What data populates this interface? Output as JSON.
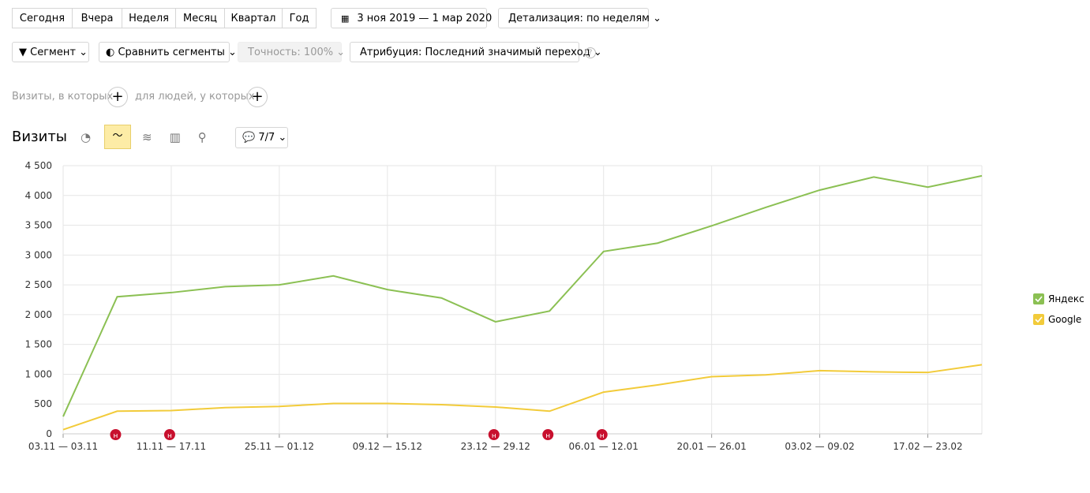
{
  "toolbar": {
    "periods": [
      "Сегодня",
      "Вчера",
      "Неделя",
      "Месяц",
      "Квартал",
      "Год"
    ],
    "date_range": "3 ноя 2019 — 1 мар 2020",
    "detail": "Детализация: по неделям",
    "segment": "Сегмент",
    "compare": "Сравнить сегменты",
    "accuracy": "Точность: 100%",
    "attribution": "Атрибуция: Последний значимый переход",
    "help": "?"
  },
  "filters": {
    "visits_label": "Визиты, в которых",
    "people_label": "для людей, у которых"
  },
  "report": {
    "title": "Визиты",
    "notes_button": "7/7"
  },
  "chart_data": {
    "type": "line",
    "categories": [
      "03.11 — 03.11",
      null,
      "11.11 — 17.11",
      null,
      "25.11 — 01.12",
      null,
      "09.12 — 15.12",
      null,
      "23.12 — 29.12",
      null,
      "06.01 — 12.01",
      null,
      "20.01 — 26.01",
      null,
      "03.02 — 09.02",
      null,
      "17.02 — 23.02",
      null
    ],
    "series": [
      {
        "name": "Яндекс",
        "color": "#8bc053",
        "values": [
          290,
          2300,
          2370,
          2470,
          2500,
          2650,
          2420,
          2280,
          1880,
          2060,
          3060,
          3200,
          3490,
          3800,
          4090,
          4310,
          4140,
          4330
        ]
      },
      {
        "name": "Google",
        "color": "#f2cb3a",
        "values": [
          70,
          380,
          390,
          440,
          460,
          510,
          510,
          490,
          450,
          380,
          700,
          820,
          960,
          990,
          1060,
          1040,
          1030,
          1160
        ]
      }
    ],
    "ylim": [
      0,
      4500
    ],
    "yticks": [
      0,
      500,
      {
        "value": 1000,
        "label": "1 000"
      },
      {
        "value": 1500,
        "label": "1 500"
      },
      {
        "value": 2000,
        "label": "2 000"
      },
      {
        "value": 2500,
        "label": "2 500"
      },
      {
        "value": 3000,
        "label": "3 000"
      },
      {
        "value": 3500,
        "label": "3 500"
      },
      {
        "value": 4000,
        "label": "4 000"
      },
      {
        "value": 4500,
        "label": "4 500"
      }
    ],
    "grid": true,
    "legend": "right",
    "annotations": [
      {
        "x": 1,
        "label": "н"
      },
      {
        "x": 2,
        "label": "н"
      },
      {
        "x": 8,
        "label": "н"
      },
      {
        "x": 9,
        "label": "н"
      },
      {
        "x": 10,
        "label": "н"
      }
    ]
  }
}
